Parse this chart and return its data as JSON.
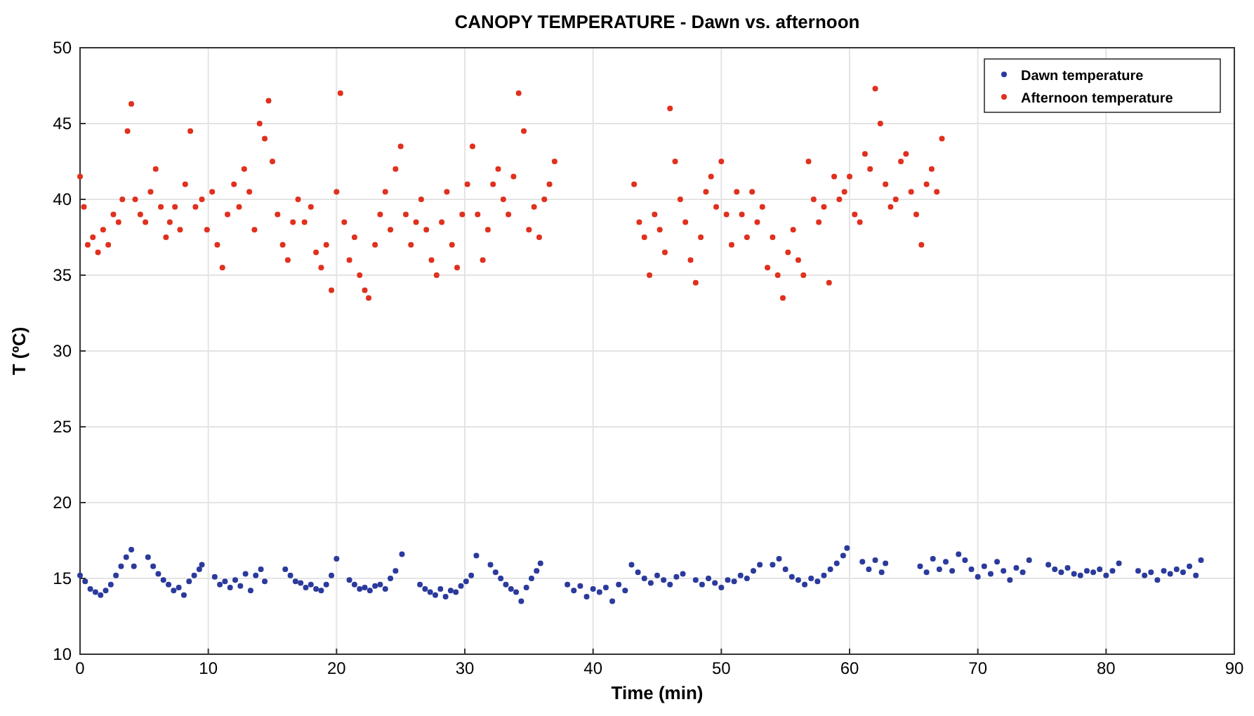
{
  "chart_data": {
    "type": "scatter",
    "title": "CANOPY TEMPERATURE - Dawn vs. afternoon",
    "xlabel": "Time (min)",
    "ylabel": "T (ºC)",
    "xlim": [
      0,
      90
    ],
    "ylim": [
      10,
      50
    ],
    "xticks": [
      0,
      10,
      20,
      30,
      40,
      50,
      60,
      70,
      80,
      90
    ],
    "yticks": [
      10,
      15,
      20,
      25,
      30,
      35,
      40,
      45,
      50
    ],
    "grid": true,
    "legend": "top right",
    "marker": "circle",
    "series": [
      {
        "name": "Dawn temperature",
        "color": "#2b3a9c",
        "x": [
          0,
          0.4,
          0.8,
          1.2,
          1.6,
          2,
          2.4,
          2.8,
          3.2,
          3.6,
          4,
          4.2,
          5.3,
          5.7,
          6.1,
          6.5,
          6.9,
          7.3,
          7.7,
          8.1,
          8.5,
          8.9,
          9.3,
          9.5,
          10.5,
          10.9,
          11.3,
          11.7,
          12.1,
          12.5,
          12.9,
          13.3,
          13.7,
          14.1,
          14.4,
          16,
          16.4,
          16.8,
          17.2,
          17.6,
          18,
          18.4,
          18.8,
          19.2,
          19.6,
          20,
          21,
          21.4,
          21.8,
          22.2,
          22.6,
          23,
          23.4,
          23.8,
          24.2,
          24.6,
          25.1,
          26.5,
          26.9,
          27.3,
          27.7,
          28.1,
          28.5,
          28.9,
          29.3,
          29.7,
          30.1,
          30.5,
          30.9,
          32,
          32.4,
          32.8,
          33.2,
          33.6,
          34,
          34.4,
          34.8,
          35.2,
          35.6,
          35.9,
          38,
          38.5,
          39,
          39.5,
          40,
          40.5,
          41,
          41.5,
          42,
          42.5,
          43,
          43.5,
          44,
          44.5,
          45,
          45.5,
          46,
          46.5,
          47,
          48,
          48.5,
          49,
          49.5,
          50,
          50.5,
          51,
          51.5,
          52,
          52.5,
          53,
          54,
          54.5,
          55,
          55.5,
          56,
          56.5,
          57,
          57.5,
          58,
          58.5,
          59,
          59.5,
          59.8,
          61,
          61.5,
          62,
          62.5,
          62.8,
          65.5,
          66,
          66.5,
          67,
          67.5,
          68,
          68.5,
          69,
          69.5,
          70,
          70.5,
          71,
          71.5,
          72,
          72.5,
          73,
          73.5,
          74,
          75.5,
          76,
          76.5,
          77,
          77.5,
          78,
          78.5,
          79,
          79.5,
          80,
          80.5,
          81,
          82.5,
          83,
          83.5,
          84,
          84.5,
          85,
          85.5,
          86,
          86.5,
          87,
          87.4
        ],
        "values": [
          15.2,
          14.8,
          14.3,
          14.1,
          13.9,
          14.2,
          14.6,
          15.2,
          15.8,
          16.4,
          16.9,
          15.8,
          16.4,
          15.8,
          15.3,
          14.9,
          14.6,
          14.2,
          14.4,
          13.9,
          14.8,
          15.2,
          15.6,
          15.9,
          15.1,
          14.6,
          14.8,
          14.4,
          14.9,
          14.5,
          15.3,
          14.2,
          15.2,
          15.6,
          14.8,
          15.6,
          15.2,
          14.8,
          14.7,
          14.4,
          14.6,
          14.3,
          14.2,
          14.6,
          15.2,
          16.3,
          14.9,
          14.6,
          14.3,
          14.4,
          14.2,
          14.5,
          14.6,
          14.3,
          15,
          15.5,
          16.6,
          14.6,
          14.3,
          14.1,
          13.9,
          14.3,
          13.8,
          14.2,
          14.1,
          14.5,
          14.8,
          15.2,
          16.5,
          15.9,
          15.4,
          15,
          14.6,
          14.3,
          14.1,
          13.5,
          14.4,
          15,
          15.5,
          16,
          14.6,
          14.2,
          14.5,
          13.8,
          14.3,
          14.1,
          14.4,
          13.5,
          14.6,
          14.2,
          15.9,
          15.4,
          15,
          14.7,
          15.2,
          14.9,
          14.6,
          15.1,
          15.3,
          14.9,
          14.6,
          15,
          14.7,
          14.4,
          14.9,
          14.8,
          15.2,
          15,
          15.5,
          15.9,
          15.9,
          16.3,
          15.6,
          15.1,
          14.9,
          14.6,
          15,
          14.8,
          15.2,
          15.6,
          16,
          16.5,
          17,
          16.1,
          15.6,
          16.2,
          15.4,
          16,
          15.8,
          15.4,
          16.3,
          15.6,
          16.1,
          15.5,
          16.6,
          16.2,
          15.6,
          15.1,
          15.8,
          15.3,
          16.1,
          15.5,
          14.9,
          15.7,
          15.4,
          16.2,
          15.9,
          15.6,
          15.4,
          15.7,
          15.3,
          15.2,
          15.5,
          15.4,
          15.6,
          15.2,
          15.5,
          16,
          15.5,
          15.2,
          15.4,
          14.9,
          15.5,
          15.3,
          15.6,
          15.4,
          15.8,
          15.2,
          16.2
        ]
      },
      {
        "name": "Afternoon temperature",
        "color": "#e0301e",
        "x": [
          0,
          0.3,
          0.6,
          1,
          1.4,
          1.8,
          2.2,
          2.6,
          3,
          3.3,
          3.7,
          4,
          4.3,
          4.7,
          5.1,
          5.5,
          5.9,
          6.3,
          6.7,
          7,
          7.4,
          7.8,
          8.2,
          8.6,
          9,
          9.5,
          9.9,
          10.3,
          10.7,
          11.1,
          11.5,
          12,
          12.4,
          12.8,
          13.2,
          13.6,
          14,
          14.4,
          14.7,
          15,
          15.4,
          15.8,
          16.2,
          16.6,
          17,
          17.5,
          18,
          18.4,
          18.8,
          19.2,
          19.6,
          20,
          20.3,
          20.6,
          21,
          21.4,
          21.8,
          22.2,
          22.5,
          23,
          23.4,
          23.8,
          24.2,
          24.6,
          25,
          25.4,
          25.8,
          26.2,
          26.6,
          27,
          27.4,
          27.8,
          28.2,
          28.6,
          29,
          29.4,
          29.8,
          30.2,
          30.6,
          31,
          31.4,
          31.8,
          32.2,
          32.6,
          33,
          33.4,
          33.8,
          34.2,
          34.6,
          35,
          35.4,
          35.8,
          36.2,
          36.6,
          37,
          43.2,
          43.6,
          44,
          44.4,
          44.8,
          45.2,
          45.6,
          46,
          46.4,
          46.8,
          47.2,
          47.6,
          48,
          48.4,
          48.8,
          49.2,
          49.6,
          50,
          50.4,
          50.8,
          51.2,
          51.6,
          52,
          52.4,
          52.8,
          53.2,
          53.6,
          54,
          54.4,
          54.8,
          55.2,
          55.6,
          56,
          56.4,
          56.8,
          57.2,
          57.6,
          58,
          58.4,
          58.8,
          59.2,
          59.6,
          60,
          60.4,
          60.8,
          61.2,
          61.6,
          62,
          62.4,
          62.8,
          63.2,
          63.6,
          64,
          64.4,
          64.8,
          65.2,
          65.6,
          66,
          66.4,
          66.8,
          67.2
        ],
        "values": [
          41.5,
          39.5,
          37,
          37.5,
          36.5,
          38,
          37,
          39,
          38.5,
          40,
          44.5,
          46.3,
          40,
          39,
          38.5,
          40.5,
          42,
          39.5,
          37.5,
          38.5,
          39.5,
          38,
          41,
          44.5,
          39.5,
          40,
          38,
          40.5,
          37,
          35.5,
          39,
          41,
          39.5,
          42,
          40.5,
          38,
          45,
          44,
          46.5,
          42.5,
          39,
          37,
          36,
          38.5,
          40,
          38.5,
          39.5,
          36.5,
          35.5,
          37,
          34,
          40.5,
          47,
          38.5,
          36,
          37.5,
          35,
          34,
          33.5,
          37,
          39,
          40.5,
          38,
          42,
          43.5,
          39,
          37,
          38.5,
          40,
          38,
          36,
          35,
          38.5,
          40.5,
          37,
          35.5,
          39,
          41,
          43.5,
          39,
          36,
          38,
          41,
          42,
          40,
          39,
          41.5,
          47,
          44.5,
          38,
          39.5,
          37.5,
          40,
          41,
          42.5,
          41,
          38.5,
          37.5,
          35,
          39,
          38,
          36.5,
          46,
          42.5,
          40,
          38.5,
          36,
          34.5,
          37.5,
          40.5,
          41.5,
          39.5,
          42.5,
          39,
          37,
          40.5,
          39,
          37.5,
          40.5,
          38.5,
          39.5,
          35.5,
          37.5,
          35,
          33.5,
          36.5,
          38,
          36,
          35,
          42.5,
          40,
          38.5,
          39.5,
          34.5,
          41.5,
          40,
          40.5,
          41.5,
          39,
          38.5,
          43,
          42,
          47.3,
          45,
          41,
          39.5,
          40,
          42.5,
          43,
          40.5,
          39,
          37,
          41,
          42,
          40.5,
          44
        ]
      }
    ]
  }
}
